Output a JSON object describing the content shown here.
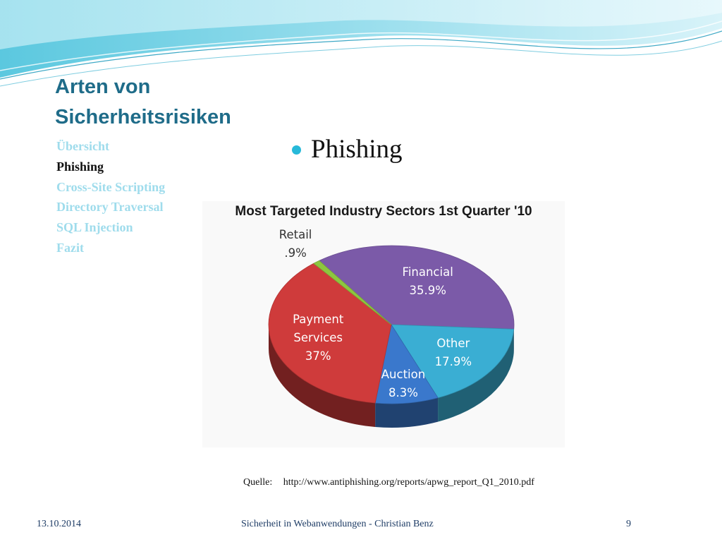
{
  "slide": {
    "title_lines": [
      "Arten von",
      "Sicherheitsrisiken"
    ],
    "nav_items": [
      {
        "label": "Übersicht",
        "active": false
      },
      {
        "label": "Phishing",
        "active": true
      },
      {
        "label": "Cross-Site Scripting",
        "active": false
      },
      {
        "label": "Directory Traversal",
        "active": false
      },
      {
        "label": "SQL Injection",
        "active": false
      },
      {
        "label": "Fazit",
        "active": false
      }
    ],
    "bullet": "Phishing",
    "source_label": "Quelle:",
    "source_url": "http://www.antiphishing.org/reports/apwg_report_Q1_2010.pdf",
    "footer": {
      "date": "13.10.2014",
      "center": "Sicherheit in Webanwendungen - Christian Benz",
      "page": "9"
    },
    "colors": {
      "title": "#1f6c89",
      "nav_inactive": "#9fdcec",
      "nav_active": "#111111",
      "bullet": "#27b9d9",
      "footer": "#1f3d66"
    }
  },
  "chart_data": {
    "type": "pie",
    "title": "Most Targeted Industry Sectors 1st Quarter '10",
    "three_d": true,
    "slices": [
      {
        "label": [
          "Financial"
        ],
        "value_label": "35.9%",
        "value": 35.9,
        "color": "#7b5aa8"
      },
      {
        "label": [
          "Other"
        ],
        "value_label": "17.9%",
        "value": 17.9,
        "color": "#3aaed3"
      },
      {
        "label": [
          "Auction"
        ],
        "value_label": "8.3%",
        "value": 8.3,
        "color": "#3a78cc"
      },
      {
        "label": [
          "Payment",
          "Services"
        ],
        "value_label": "37%",
        "value": 37.0,
        "color": "#cf3b3b"
      },
      {
        "label": [
          "Retail"
        ],
        "value_label": ".9%",
        "value": 0.9,
        "color": "#8dc63f"
      }
    ]
  }
}
